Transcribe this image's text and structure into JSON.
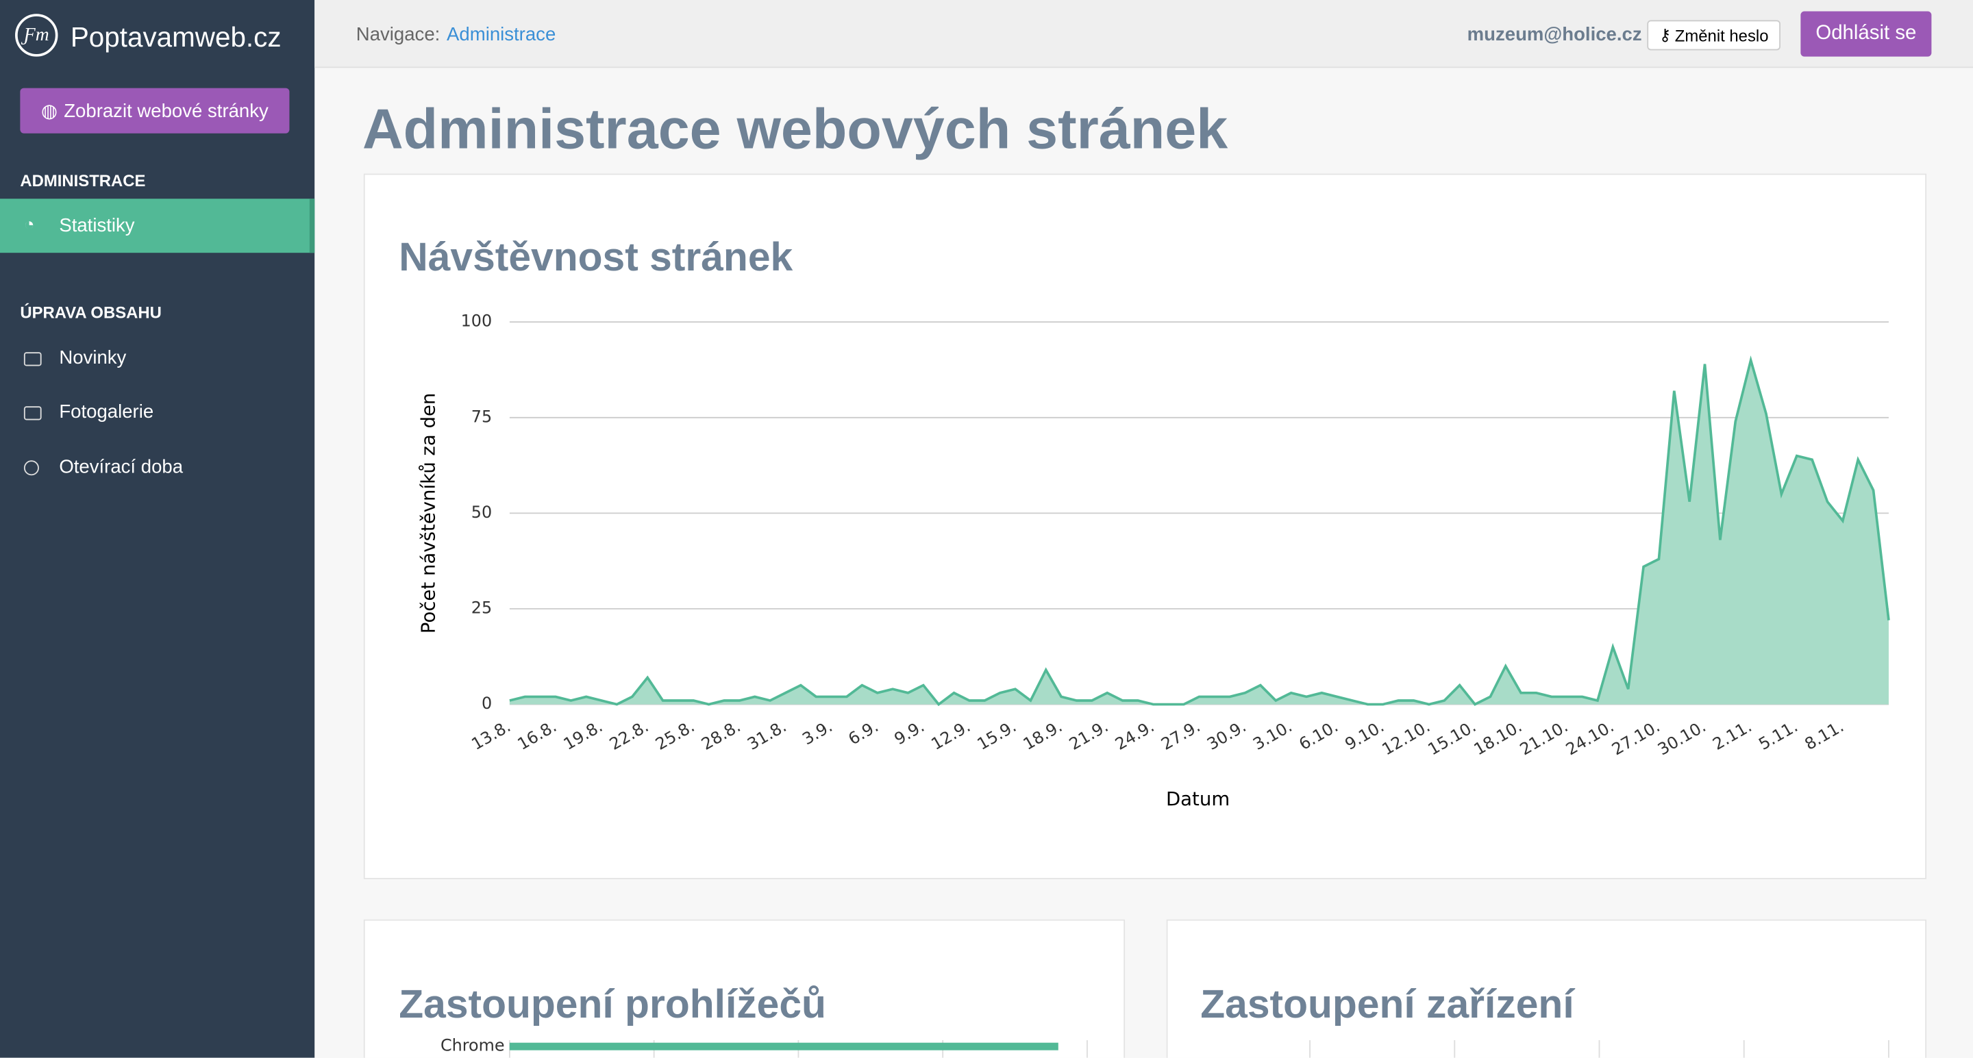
{
  "sidebar": {
    "brand": "Poptavamweb.cz",
    "view_button": "Zobrazit webové stránky",
    "section1": "ADMINISTRACE",
    "active_item": "Statistiky",
    "section2": "ÚPRAVA OBSAHU",
    "items": [
      "Novinky",
      "Fotogalerie",
      "Otevírací doba"
    ]
  },
  "topbar": {
    "nav_label": "Navigace:",
    "nav_link": "Administrace",
    "user": "muzeum@holice.cz",
    "change_password": "Změnit heslo",
    "logout": "Odhlásit se"
  },
  "page_title": "Administrace webových stránek",
  "devices_title": "Zastoupení zařízení",
  "chart_data": [
    {
      "type": "area",
      "title": "Návštěvnost stránek",
      "xlabel": "Datum",
      "ylabel": "Počet návštěvníků za den",
      "color": "#52b996",
      "fill": "#a8dcc8",
      "ylim": [
        0,
        100
      ],
      "yticks": [
        0,
        25,
        50,
        75,
        100
      ],
      "grid": true,
      "categories": [
        "13.8.",
        null,
        null,
        "16.8.",
        null,
        null,
        "19.8.",
        null,
        null,
        "22.8.",
        null,
        null,
        "25.8.",
        null,
        null,
        "28.8.",
        null,
        null,
        "31.8.",
        null,
        null,
        "3.9.",
        null,
        null,
        "6.9.",
        null,
        null,
        "9.9.",
        null,
        null,
        "12.9.",
        null,
        null,
        "15.9.",
        null,
        null,
        "18.9.",
        null,
        null,
        "21.9.",
        null,
        null,
        "24.9.",
        null,
        null,
        "27.9.",
        null,
        null,
        "30.9.",
        null,
        null,
        "3.10.",
        null,
        null,
        "6.10.",
        null,
        null,
        "9.10.",
        null,
        null,
        "12.10.",
        null,
        null,
        "15.10.",
        null,
        null,
        "18.10.",
        null,
        null,
        "21.10.",
        null,
        null,
        "24.10.",
        null,
        null,
        "27.10.",
        null,
        null,
        "30.10.",
        null,
        null,
        "2.11.",
        null,
        null,
        "5.11.",
        null,
        null,
        "8.11.",
        null,
        null,
        null
      ],
      "values": [
        1,
        2,
        2,
        2,
        1,
        2,
        1,
        0,
        2,
        7,
        1,
        1,
        1,
        0,
        1,
        1,
        2,
        1,
        3,
        5,
        2,
        2,
        2,
        5,
        3,
        4,
        3,
        5,
        0,
        3,
        1,
        1,
        3,
        4,
        1,
        9,
        2,
        1,
        1,
        3,
        1,
        1,
        0,
        0,
        0,
        2,
        2,
        2,
        3,
        5,
        1,
        3,
        2,
        3,
        2,
        1,
        0,
        0,
        1,
        1,
        0,
        1,
        5,
        0,
        2,
        10,
        3,
        3,
        2,
        2,
        2,
        1,
        15,
        4,
        36,
        38,
        82,
        53,
        89,
        43,
        74,
        90,
        76,
        55,
        65,
        64,
        53,
        48,
        64,
        56,
        22
      ]
    },
    {
      "type": "hbar",
      "title": "Zastoupení prohlížečů",
      "categories": [
        "Chrome"
      ],
      "values": [
        3.8
      ],
      "color": "#52b996",
      "xlim": [
        0,
        4
      ],
      "xticks": [
        0,
        1,
        2,
        3,
        4
      ],
      "grid": true
    }
  ]
}
